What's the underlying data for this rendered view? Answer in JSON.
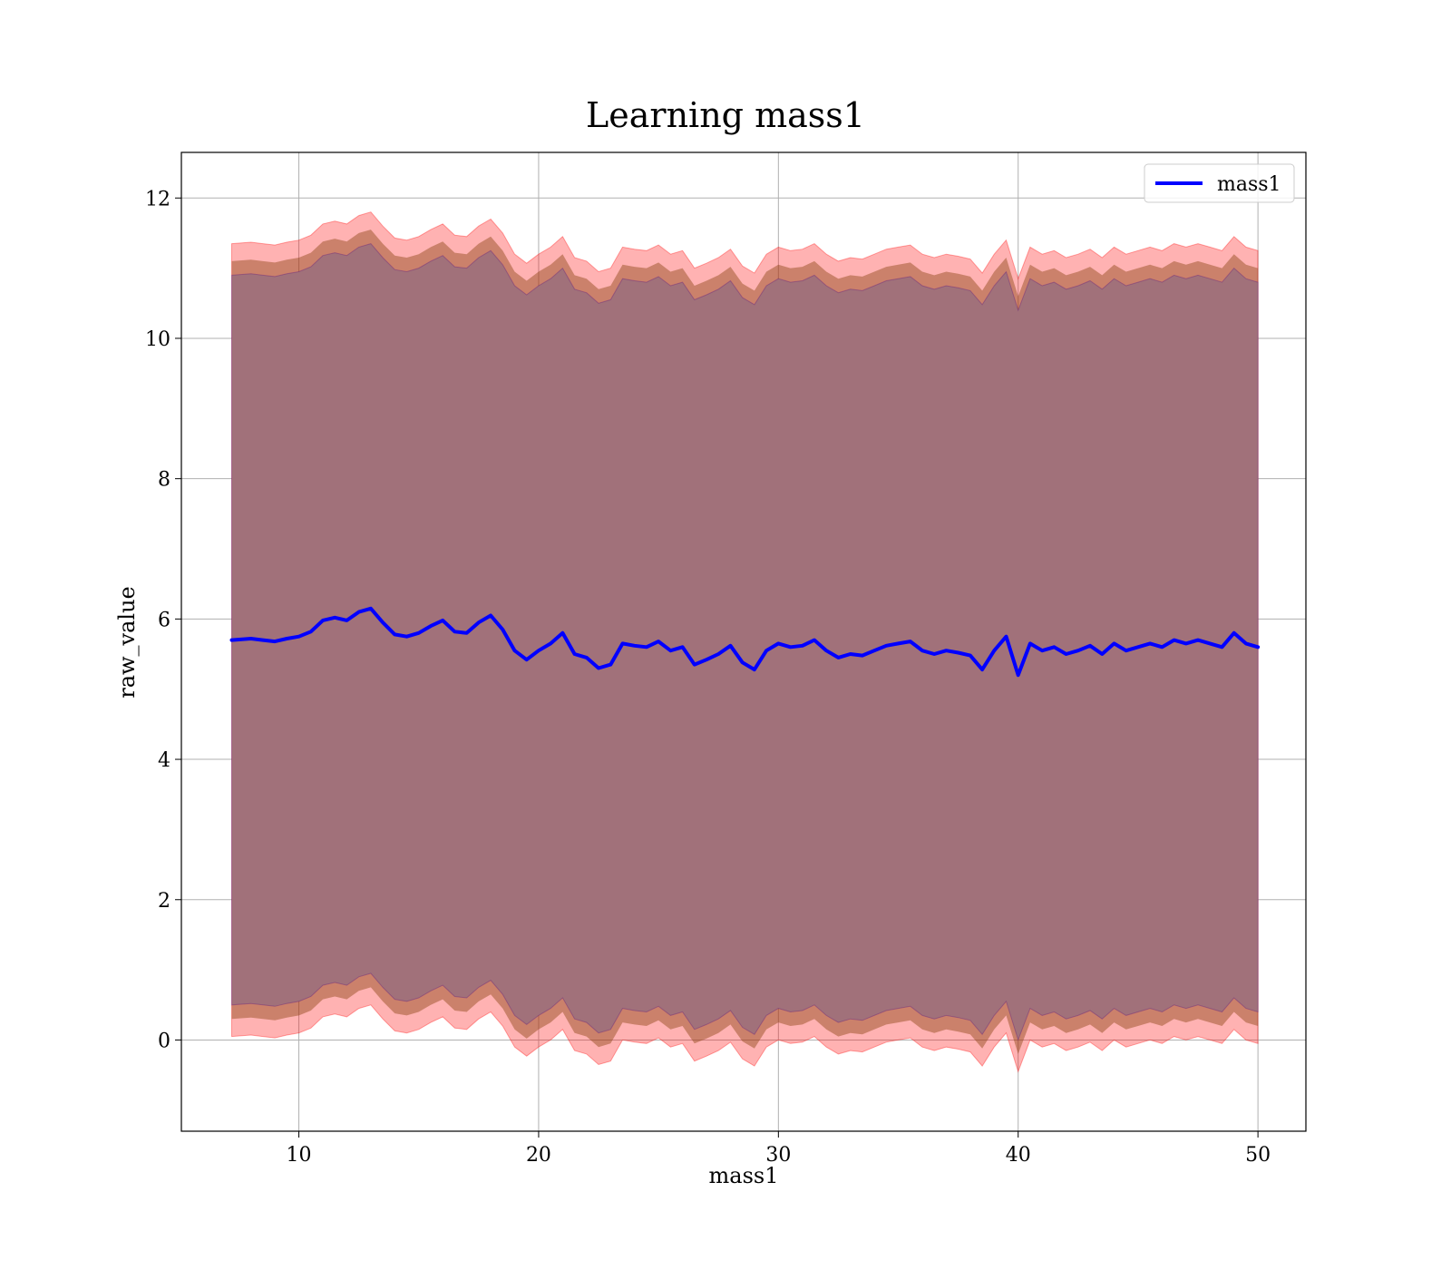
{
  "chart_data": {
    "type": "line",
    "title": "Learning mass1",
    "xlabel": "mass1",
    "ylabel": "raw_value",
    "xlim": [
      5.1,
      52.0
    ],
    "ylim": [
      -1.3,
      12.65
    ],
    "xticks": [
      10,
      20,
      30,
      40,
      50
    ],
    "yticks": [
      0,
      2,
      4,
      6,
      8,
      10,
      12
    ],
    "grid": true,
    "legend_position": "top-right",
    "colors": {
      "line": "#0000ff",
      "band_outer": "#ff0000",
      "band_mid": "#8b4513",
      "band_inner": "#4b0082",
      "band_fill": "#a1717a"
    },
    "series": [
      {
        "name": "mass1",
        "x": [
          7.2,
          8.0,
          8.5,
          9.0,
          9.5,
          10.0,
          10.5,
          11.0,
          11.5,
          12.0,
          12.5,
          13.0,
          13.5,
          14.0,
          14.5,
          15.0,
          15.5,
          16.0,
          16.5,
          17.0,
          17.5,
          18.0,
          18.5,
          19.0,
          19.5,
          20.0,
          20.5,
          21.0,
          21.5,
          22.0,
          22.5,
          23.0,
          23.5,
          24.0,
          24.5,
          25.0,
          25.5,
          26.0,
          26.5,
          27.0,
          27.5,
          28.0,
          28.5,
          29.0,
          29.5,
          30.0,
          30.5,
          31.0,
          31.5,
          32.0,
          32.5,
          33.0,
          33.5,
          34.0,
          34.5,
          35.0,
          35.5,
          36.0,
          36.5,
          37.0,
          37.5,
          38.0,
          38.5,
          39.0,
          39.5,
          40.0,
          40.5,
          41.0,
          41.5,
          42.0,
          42.5,
          43.0,
          43.5,
          44.0,
          44.5,
          45.0,
          45.5,
          46.0,
          46.5,
          47.0,
          47.5,
          48.0,
          48.5,
          49.0,
          49.5,
          50.0
        ],
        "values": [
          5.7,
          5.72,
          5.7,
          5.68,
          5.72,
          5.75,
          5.82,
          5.98,
          6.02,
          5.98,
          6.1,
          6.15,
          5.95,
          5.78,
          5.75,
          5.8,
          5.9,
          5.98,
          5.82,
          5.8,
          5.95,
          6.05,
          5.85,
          5.55,
          5.42,
          5.55,
          5.65,
          5.8,
          5.5,
          5.45,
          5.3,
          5.35,
          5.65,
          5.62,
          5.6,
          5.68,
          5.55,
          5.6,
          5.35,
          5.42,
          5.5,
          5.62,
          5.38,
          5.28,
          5.55,
          5.65,
          5.6,
          5.62,
          5.7,
          5.55,
          5.45,
          5.5,
          5.48,
          5.55,
          5.62,
          5.65,
          5.68,
          5.55,
          5.5,
          5.55,
          5.52,
          5.48,
          5.28,
          5.55,
          5.75,
          5.2,
          5.65,
          5.55,
          5.6,
          5.5,
          5.55,
          5.62,
          5.5,
          5.65,
          5.55,
          5.6,
          5.65,
          5.6,
          5.7,
          5.65,
          5.7,
          5.65,
          5.6,
          5.8,
          5.65,
          5.6
        ]
      }
    ],
    "band_half_widths": {
      "outer": 5.65,
      "mid": 5.4,
      "inner": 5.2
    },
    "band_label": ""
  }
}
